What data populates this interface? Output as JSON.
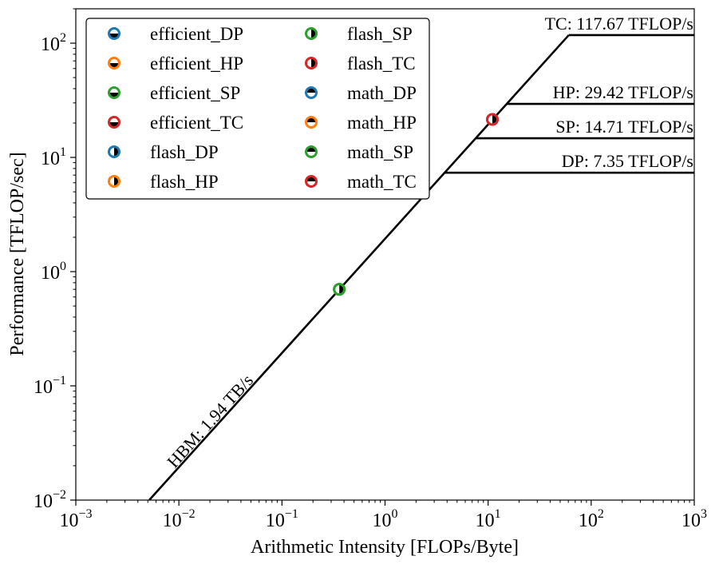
{
  "chart_data": {
    "type": "line",
    "title": "",
    "xlabel": "Arithmetic Intensity [FLOPs/Byte]",
    "ylabel": "Performance [TFLOP/sec]",
    "xscale": "log",
    "yscale": "log",
    "xlim": [
      0.001,
      1000
    ],
    "ylim": [
      0.01,
      200
    ],
    "grid": false,
    "x_ticks": [
      {
        "value": 0.001,
        "base": "10",
        "exp": "−3"
      },
      {
        "value": 0.01,
        "base": "10",
        "exp": "−2"
      },
      {
        "value": 0.1,
        "base": "10",
        "exp": "−1"
      },
      {
        "value": 1,
        "base": "10",
        "exp": "0"
      },
      {
        "value": 10,
        "base": "10",
        "exp": "1"
      },
      {
        "value": 100,
        "base": "10",
        "exp": "2"
      },
      {
        "value": 1000,
        "base": "10",
        "exp": "3"
      }
    ],
    "y_ticks": [
      {
        "value": 0.01,
        "base": "10",
        "exp": "−2"
      },
      {
        "value": 0.1,
        "base": "10",
        "exp": "−1"
      },
      {
        "value": 1,
        "base": "10",
        "exp": "0"
      },
      {
        "value": 10,
        "base": "10",
        "exp": "1"
      },
      {
        "value": 100,
        "base": "10",
        "exp": "2"
      }
    ],
    "memory_roof": {
      "label": "HBM: 1.94 TB/s",
      "bandwidth": 1.94
    },
    "compute_roofs": [
      {
        "label": "TC: 117.67 TFLOP/s",
        "value": 117.67
      },
      {
        "label": "HP: 29.42 TFLOP/s",
        "value": 29.42
      },
      {
        "label": "SP: 14.71 TFLOP/s",
        "value": 14.71
      },
      {
        "label": "DP: 7.35 TFLOP/s",
        "value": 7.35
      }
    ],
    "series": [
      {
        "name": "efficient_DP",
        "color": "#1f77b4",
        "fill": "bottom",
        "x": [],
        "y": []
      },
      {
        "name": "efficient_HP",
        "color": "#ff7f0e",
        "fill": "bottom",
        "x": [],
        "y": []
      },
      {
        "name": "efficient_SP",
        "color": "#2ca02c",
        "fill": "bottom",
        "x": [
          0.36
        ],
        "y": [
          0.7
        ]
      },
      {
        "name": "efficient_TC",
        "color": "#d62728",
        "fill": "bottom",
        "x": [
          11
        ],
        "y": [
          21.5
        ]
      },
      {
        "name": "flash_DP",
        "color": "#1f77b4",
        "fill": "right",
        "x": [],
        "y": []
      },
      {
        "name": "flash_HP",
        "color": "#ff7f0e",
        "fill": "right",
        "x": [],
        "y": []
      },
      {
        "name": "flash_SP",
        "color": "#2ca02c",
        "fill": "right",
        "x": [
          0.36
        ],
        "y": [
          0.7
        ]
      },
      {
        "name": "flash_TC",
        "color": "#d62728",
        "fill": "right",
        "x": [
          11
        ],
        "y": [
          21.5
        ]
      },
      {
        "name": "math_DP",
        "color": "#1f77b4",
        "fill": "top",
        "x": [],
        "y": []
      },
      {
        "name": "math_HP",
        "color": "#ff7f0e",
        "fill": "top",
        "x": [],
        "y": []
      },
      {
        "name": "math_SP",
        "color": "#2ca02c",
        "fill": "top",
        "x": [],
        "y": []
      },
      {
        "name": "math_TC",
        "color": "#d62728",
        "fill": "top",
        "x": [],
        "y": []
      }
    ],
    "legend": {
      "placement": "top-left",
      "columns": 2
    }
  }
}
